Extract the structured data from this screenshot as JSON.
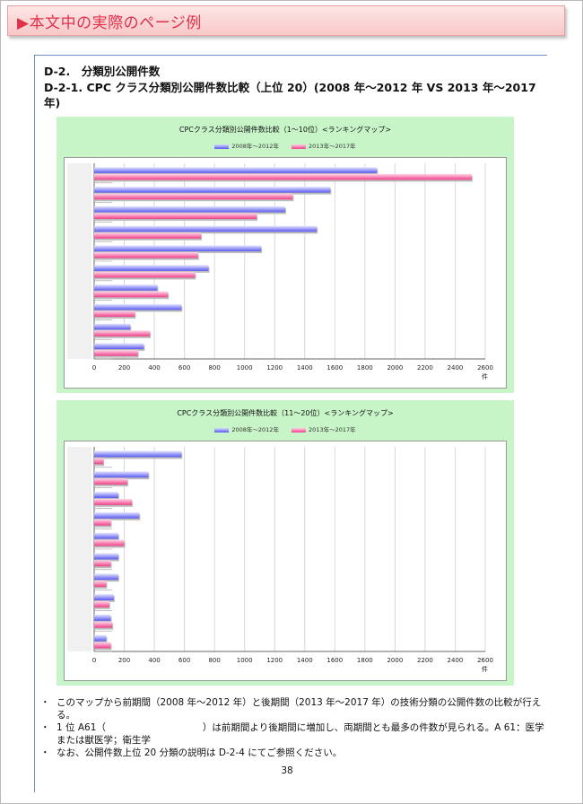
{
  "banner": {
    "title": "▶本文中の実際のページ例"
  },
  "section": {
    "title": "D-2.　分類別公開件数",
    "subtitle": "D-2-1. CPC クラス分類別公開件数比較（上位 20）(2008 年～2012 年 VS 2013 年～2017 年)"
  },
  "colors": {
    "series1": "#5a5af0",
    "series2": "#f0408a",
    "panel": "#c8f5c8",
    "banner_text": "#e0304a"
  },
  "chart_data": [
    {
      "type": "bar",
      "orientation": "horizontal",
      "title": "CPCクラス分類別公開件数比較（1～10位）<ランキングマップ>",
      "legend": [
        "2008年～2012年",
        "2013年～2017年"
      ],
      "xlim": [
        0,
        2600
      ],
      "xticks": [
        "0",
        "200",
        "400",
        "600",
        "800",
        "1000",
        "1200",
        "1400",
        "1600",
        "1800",
        "2000",
        "2200",
        "2400",
        "2600"
      ],
      "unit": "件",
      "grid": true,
      "series": [
        {
          "name": "2008年～2012年",
          "values": [
            1880,
            1570,
            1270,
            1480,
            1110,
            760,
            420,
            580,
            240,
            330
          ]
        },
        {
          "name": "2013年～2017年",
          "values": [
            2510,
            1320,
            1080,
            710,
            690,
            670,
            490,
            270,
            370,
            290
          ]
        }
      ]
    },
    {
      "type": "bar",
      "orientation": "horizontal",
      "title": "CPCクラス分類別公開件数比較（11～20位）<ランキングマップ>",
      "legend": [
        "2008年～2012年",
        "2013年～2017年"
      ],
      "xlim": [
        0,
        2600
      ],
      "xticks": [
        "0",
        "200",
        "400",
        "600",
        "800",
        "1000",
        "1200",
        "1400",
        "1600",
        "1800",
        "2000",
        "2200",
        "2400",
        "2600"
      ],
      "unit": "件",
      "grid": true,
      "series": [
        {
          "name": "2008年～2012年",
          "values": [
            580,
            360,
            160,
            300,
            160,
            160,
            160,
            130,
            110,
            80
          ]
        },
        {
          "name": "2013年～2017年",
          "values": [
            60,
            220,
            250,
            110,
            200,
            110,
            80,
            100,
            120,
            110
          ]
        }
      ]
    }
  ],
  "bullets": {
    "b1": "このマップから前期間（2008 年～2012 年）と後期間（2013 年～2017 年）の技術分類の公開件数の比較が行える。",
    "b2a": "1 位  A61（",
    "b2b": "）は前期間より後期間に増加し、両期間とも最多の件数が見られる。A 61：医学または獣医学；衛生学",
    "b3": "なお、公開件数上位 20 分類の説明は D-2-4 にてご参照ください。",
    "dot": "・"
  },
  "page_number": "38"
}
